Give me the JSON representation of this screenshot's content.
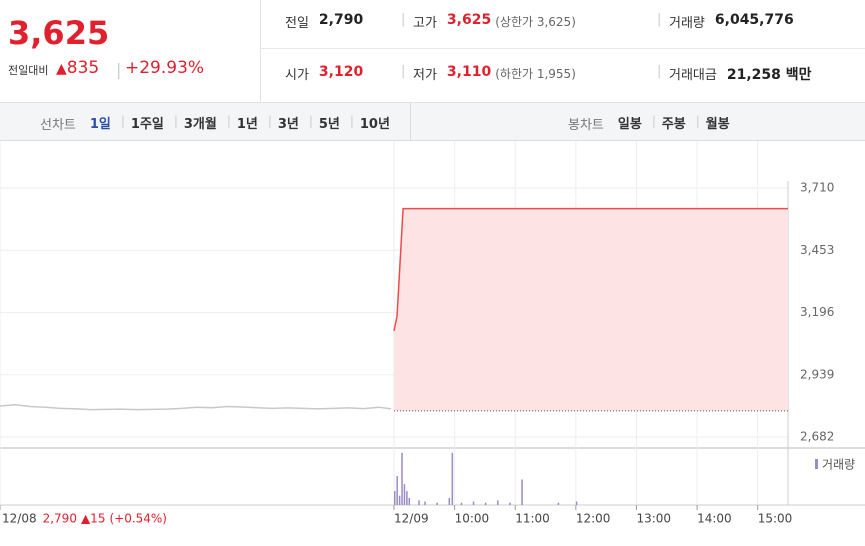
{
  "quote": {
    "price": "3,625",
    "change_label": "전일대비",
    "change": "835",
    "change_pct": "+29.93%"
  },
  "summary": [
    [
      {
        "label": "전일",
        "value": "2,790"
      },
      {
        "label": "고가",
        "value": "3,625",
        "sub": "(상한가 3,625)"
      },
      {
        "label": "거래량",
        "value": "6,045,776"
      }
    ],
    [
      {
        "label": "시가",
        "value": "3,120"
      },
      {
        "label": "저가",
        "value": "3,110",
        "sub": "(하한가 1,955)"
      },
      {
        "label": "거래대금",
        "value": "21,258 백만"
      }
    ]
  ],
  "line_tabs": {
    "label": "선차트",
    "items": [
      "1일",
      "1주일",
      "3개월",
      "1년",
      "3년",
      "5년",
      "10년"
    ],
    "active": 0
  },
  "candle_tabs": {
    "label": "봉차트",
    "items": [
      "일봉",
      "주봉",
      "월봉"
    ]
  },
  "chart_data": {
    "type": "line",
    "ylim": [
      2682,
      3710
    ],
    "yticks": [
      {
        "value": 3710,
        "label": "3,710"
      },
      {
        "value": 3453,
        "label": "3,453"
      },
      {
        "value": 3196,
        "label": "3,196"
      },
      {
        "value": 2939,
        "label": "2,939"
      },
      {
        "value": 2682,
        "label": "2,682"
      }
    ],
    "xlim": [
      0,
      13
    ],
    "xticks": [
      {
        "value": 0,
        "label": "12/08"
      },
      {
        "value": 6.5,
        "label": "12/09"
      },
      {
        "value": 7.5,
        "label": "10:00"
      },
      {
        "value": 8.5,
        "label": "11:00"
      },
      {
        "value": 9.5,
        "label": "12:00"
      },
      {
        "value": 10.5,
        "label": "13:00"
      },
      {
        "value": 11.5,
        "label": "14:00"
      },
      {
        "value": 12.5,
        "label": "15:00"
      }
    ],
    "prev_day": {
      "close": "2,790",
      "change": "▲15",
      "pct": "(+0.54%)"
    },
    "baseline": 2790,
    "series": [
      {
        "color": "#c8c8c8",
        "x": [
          0,
          0.25,
          0.5,
          0.75,
          1,
          1.25,
          1.5,
          1.75,
          2,
          2.25,
          2.5,
          2.75,
          3,
          3.25,
          3.5,
          3.75,
          4,
          4.25,
          4.5,
          4.75,
          5,
          5.25,
          5.5,
          5.75,
          6,
          6.25,
          6.45
        ],
        "values": [
          2810,
          2815,
          2808,
          2805,
          2800,
          2798,
          2795,
          2796,
          2797,
          2795,
          2796,
          2797,
          2800,
          2805,
          2803,
          2808,
          2806,
          2803,
          2800,
          2802,
          2800,
          2798,
          2800,
          2802,
          2799,
          2805,
          2798
        ]
      },
      {
        "color": "#f04b4b",
        "fill": "#fde3e3",
        "x": [
          6.5,
          6.55,
          6.65,
          13
        ],
        "values": [
          3120,
          3180,
          3625,
          3625
        ]
      }
    ],
    "volume": {
      "name": "거래량",
      "color": "#9a8ac6",
      "ylim": [
        0,
        50
      ],
      "x": [
        6.5,
        6.54,
        6.58,
        6.62,
        6.66,
        6.7,
        6.74,
        6.9,
        7.0,
        7.2,
        7.4,
        7.45,
        7.6,
        7.8,
        8.0,
        8.2,
        8.4,
        8.6,
        9.2,
        9.5
      ],
      "values": [
        12,
        25,
        8,
        45,
        18,
        12,
        6,
        4,
        3,
        2,
        6,
        45,
        2,
        3,
        2,
        4,
        2,
        22,
        2,
        3
      ]
    }
  }
}
